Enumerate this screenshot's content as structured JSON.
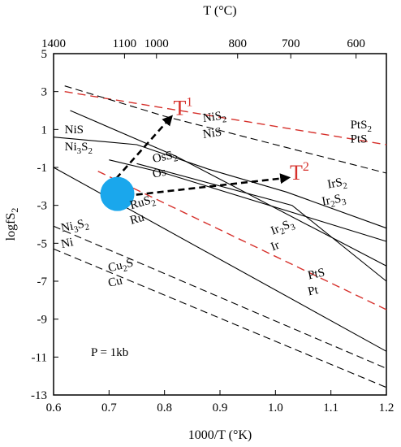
{
  "chart_data": {
    "type": "line",
    "xlabel": "1000/T (°K)",
    "x2label": "T (°C)",
    "ylabel": "logfS2",
    "xlim": [
      0.6,
      1.2
    ],
    "ylim": [
      -13,
      5
    ],
    "xticks": [
      "0.6",
      "0.7",
      "0.8",
      "0.9",
      "1.0",
      "1.1",
      "1.2"
    ],
    "yticks": [
      "-13",
      "-11",
      "-9",
      "-7",
      "-5",
      "-3",
      "-1",
      "1",
      "3",
      "5"
    ],
    "top_ticks": [
      {
        "label": "1400",
        "x": 0.6
      },
      {
        "label": "1100",
        "x": 0.7279
      },
      {
        "label": "1000",
        "x": 0.7855
      },
      {
        "label": "800",
        "x": 0.9318
      },
      {
        "label": "700",
        "x": 1.0276
      },
      {
        "label": "600",
        "x": 1.1453
      }
    ],
    "annotation": "P = 1kb",
    "series": [
      {
        "id": "pts2-pts",
        "color": "#d6302b",
        "dash": "long",
        "points": [
          [
            0.62,
            3.0
          ],
          [
            1.2,
            0.2
          ]
        ]
      },
      {
        "id": "nis2-nis",
        "color": "#000000",
        "dash": "mixed",
        "points": [
          [
            0.62,
            3.3
          ],
          [
            0.8,
            1.7
          ],
          [
            1.2,
            -1.3
          ]
        ]
      },
      {
        "id": "nis-ni3s2",
        "color": "#000000",
        "dash": "solid",
        "points": [
          [
            0.6,
            0.6
          ],
          [
            0.75,
            0.2
          ],
          [
            0.88,
            -1.1
          ],
          [
            1.02,
            -2.3
          ],
          [
            1.2,
            -4.2
          ]
        ]
      },
      {
        "id": "oss2-os",
        "color": "#000000",
        "dash": "solid",
        "points": [
          [
            0.63,
            2.0
          ],
          [
            0.82,
            -0.4
          ],
          [
            1.2,
            -6.2
          ]
        ]
      },
      {
        "id": "irs2-ir2s3",
        "color": "#000000",
        "dash": "solid",
        "points": [
          [
            0.7,
            -0.6
          ],
          [
            0.8,
            -1.3
          ],
          [
            1.2,
            -4.9
          ]
        ]
      },
      {
        "id": "ir2s3-ir",
        "color": "#000000",
        "dash": "solid",
        "points": [
          [
            0.75,
            -0.8
          ],
          [
            1.03,
            -3.0
          ],
          [
            1.2,
            -7.0
          ]
        ]
      },
      {
        "id": "pts-pt",
        "color": "#d6302b",
        "dash": "long",
        "points": [
          [
            0.68,
            -1.2
          ],
          [
            1.2,
            -8.5
          ]
        ]
      },
      {
        "id": "rus2-ru",
        "color": "#000000",
        "dash": "solid",
        "points": [
          [
            0.6,
            -1.0
          ],
          [
            1.2,
            -10.7
          ]
        ]
      },
      {
        "id": "ni3s2-ni",
        "color": "#000000",
        "dash": "mixed",
        "points": [
          [
            0.6,
            -4.1
          ],
          [
            1.2,
            -11.6
          ]
        ]
      },
      {
        "id": "cu2s-cu",
        "color": "#000000",
        "dash": "mixed",
        "points": [
          [
            0.6,
            -5.3
          ],
          [
            1.2,
            -12.6
          ]
        ]
      }
    ],
    "arrows": [
      {
        "id": "arrow-t1",
        "from": [
          0.7,
          -2.0
        ],
        "to": [
          0.81,
          1.6
        ],
        "label": "T",
        "sup": "1"
      },
      {
        "id": "arrow-t2",
        "from": [
          0.73,
          -2.5
        ],
        "to": [
          1.02,
          -1.55
        ],
        "label": "T",
        "sup": "2"
      }
    ],
    "marker": {
      "x": 0.715,
      "y": -2.4,
      "color": "#1aa7ec"
    },
    "labels": [
      {
        "id": "lbl-nis2",
        "base": "NiS",
        "sub": "2",
        "x": 0.87,
        "y": 1.4,
        "rot": -8
      },
      {
        "id": "lbl-nis-a",
        "base": "NiS",
        "sub": "",
        "x": 0.87,
        "y": 0.55,
        "rot": -8
      },
      {
        "id": "lbl-pts2",
        "base": "PtS",
        "sub": "2",
        "x": 1.135,
        "y": 1.05,
        "rot": 0
      },
      {
        "id": "lbl-pts-a",
        "base": "PtS",
        "sub": "",
        "x": 1.135,
        "y": 0.3,
        "rot": 0
      },
      {
        "id": "lbl-nis-b",
        "base": "NiS",
        "sub": "",
        "x": 0.62,
        "y": 0.8,
        "rot": 0
      },
      {
        "id": "lbl-ni3s2-a",
        "base": "Ni3S",
        "sub": "2",
        "subpos": 2,
        "x": 0.62,
        "y": -0.1,
        "rot": 0
      },
      {
        "id": "lbl-oss2",
        "base": "OsS",
        "sub": "2",
        "x": 0.78,
        "y": -0.75,
        "rot": -12
      },
      {
        "id": "lbl-os",
        "base": "Os",
        "sub": "",
        "x": 0.78,
        "y": -1.55,
        "rot": -12
      },
      {
        "id": "lbl-irs2",
        "base": "IrS",
        "sub": "2",
        "x": 1.095,
        "y": -2.1,
        "rot": -10
      },
      {
        "id": "lbl-ir2s3-a",
        "base": "Ir2S",
        "sub": "3",
        "subpos": 2,
        "x": 1.085,
        "y": -3.0,
        "rot": -10
      },
      {
        "id": "lbl-rus2",
        "base": "RuS",
        "sub": "2",
        "x": 0.74,
        "y": -3.2,
        "rot": -16
      },
      {
        "id": "lbl-ru",
        "base": "Ru",
        "sub": "",
        "x": 0.74,
        "y": -4.0,
        "rot": -16
      },
      {
        "id": "lbl-ir2s3-b",
        "base": "Ir2S",
        "sub": "3",
        "subpos": 2,
        "x": 0.995,
        "y": -4.55,
        "rot": -22
      },
      {
        "id": "lbl-ir",
        "base": "Ir",
        "sub": "",
        "x": 0.995,
        "y": -5.4,
        "rot": -22
      },
      {
        "id": "lbl-ni3s2-b",
        "base": "Ni3S",
        "sub": "2",
        "subpos": 2,
        "x": 0.615,
        "y": -4.4,
        "rot": -12
      },
      {
        "id": "lbl-ni",
        "base": "Ni",
        "sub": "",
        "x": 0.615,
        "y": -5.25,
        "rot": -12
      },
      {
        "id": "lbl-cu2s",
        "base": "Cu2S",
        "sub": "",
        "subpos": 2,
        "x": 0.7,
        "y": -6.5,
        "rot": -13
      },
      {
        "id": "lbl-cu",
        "base": "Cu",
        "sub": "",
        "x": 0.7,
        "y": -7.3,
        "rot": -13
      },
      {
        "id": "lbl-pts-b",
        "base": "PtS",
        "sub": "",
        "x": 1.06,
        "y": -6.9,
        "rot": -12
      },
      {
        "id": "lbl-pt",
        "base": "Pt",
        "sub": "",
        "x": 1.06,
        "y": -7.75,
        "rot": -12
      }
    ]
  }
}
